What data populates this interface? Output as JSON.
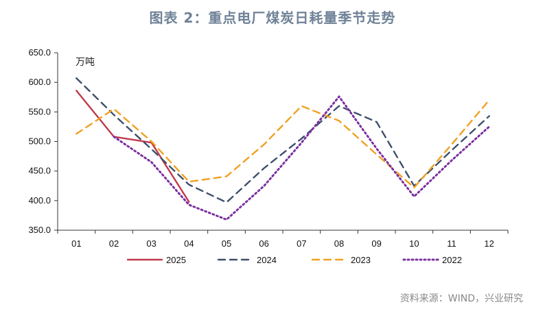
{
  "title": "图表 2：重点电厂煤炭日耗量季节走势",
  "unit": "万吨",
  "source": "资料来源：WIND，兴业研究",
  "chart_data": {
    "type": "line",
    "categories": [
      "01",
      "02",
      "03",
      "04",
      "05",
      "06",
      "07",
      "08",
      "09",
      "10",
      "11",
      "12"
    ],
    "ylim": [
      350,
      650
    ],
    "yticks": [
      350,
      400,
      450,
      500,
      550,
      600,
      650
    ],
    "ytick_labels": [
      "350.0",
      "400.0",
      "450.0",
      "500.0",
      "550.0",
      "600.0",
      "650.0"
    ],
    "ylabel": "万吨",
    "legend_position": "bottom",
    "series": [
      {
        "name": "2025",
        "color": "#c0394b",
        "dash": "solid",
        "values": [
          586,
          508,
          498,
          398,
          null,
          null,
          null,
          null,
          null,
          null,
          null,
          null
        ]
      },
      {
        "name": "2024",
        "color": "#3d4f6b",
        "dash": "dashed",
        "values": [
          607,
          545,
          487,
          427,
          397,
          455,
          505,
          560,
          533,
          425,
          485,
          543
        ]
      },
      {
        "name": "2023",
        "color": "#f0a020",
        "dash": "dashed",
        "values": [
          513,
          555,
          500,
          432,
          441,
          495,
          560,
          535,
          478,
          422,
          495,
          570
        ]
      },
      {
        "name": "2022",
        "color": "#7b2fa0",
        "dash": "dotted",
        "values": [
          null,
          508,
          465,
          393,
          368,
          425,
          498,
          576,
          488,
          407,
          468,
          525
        ]
      }
    ]
  }
}
